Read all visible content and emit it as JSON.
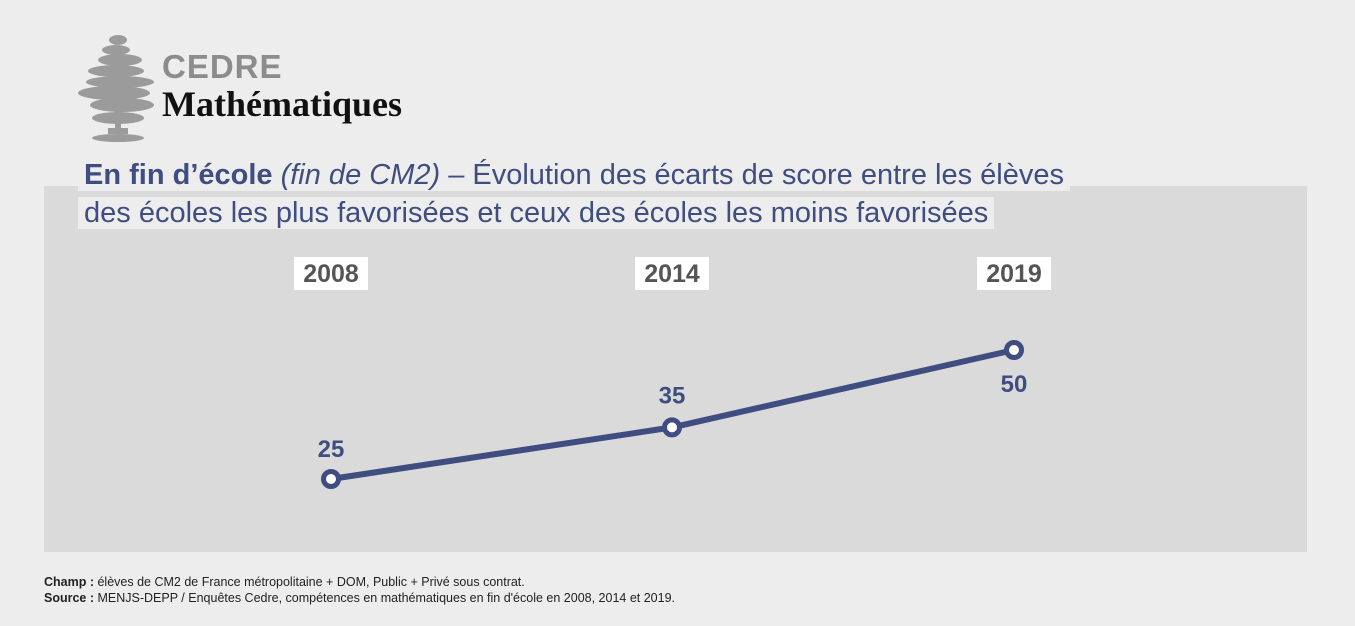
{
  "logo": {
    "brand": "CEDRE",
    "subject": "Mathématiques",
    "icon": "cedar-tree-icon"
  },
  "title": {
    "bold_part": "En fin d’école",
    "italic_part": "(fin de CM2)",
    "rest_line1": " – Évolution des écarts de score entre les élèves",
    "line2": "des écoles les plus favorisées et ceux des écoles les moins favorisées"
  },
  "chart_data": {
    "type": "line",
    "title": "",
    "xlabel": "",
    "ylabel": "",
    "categories": [
      "2008",
      "2014",
      "2019"
    ],
    "values": [
      25,
      35,
      50
    ],
    "grid": false,
    "legend": "none",
    "colors": {
      "line": "#3f4d80",
      "panel": "#dadada",
      "label": "#3f4d80",
      "year_label": "#555555",
      "year_box": "#ffffff"
    }
  },
  "footer": {
    "champ_label": "Champ :",
    "champ_text": " élèves de CM2 de France métropolitaine + DOM, Public + Privé sous contrat.",
    "source_label": "Source :",
    "source_text": " MENJS-DEPP / Enquêtes Cedre, compétences en mathématiques en fin d'école en 2008, 2014 et 2019."
  }
}
